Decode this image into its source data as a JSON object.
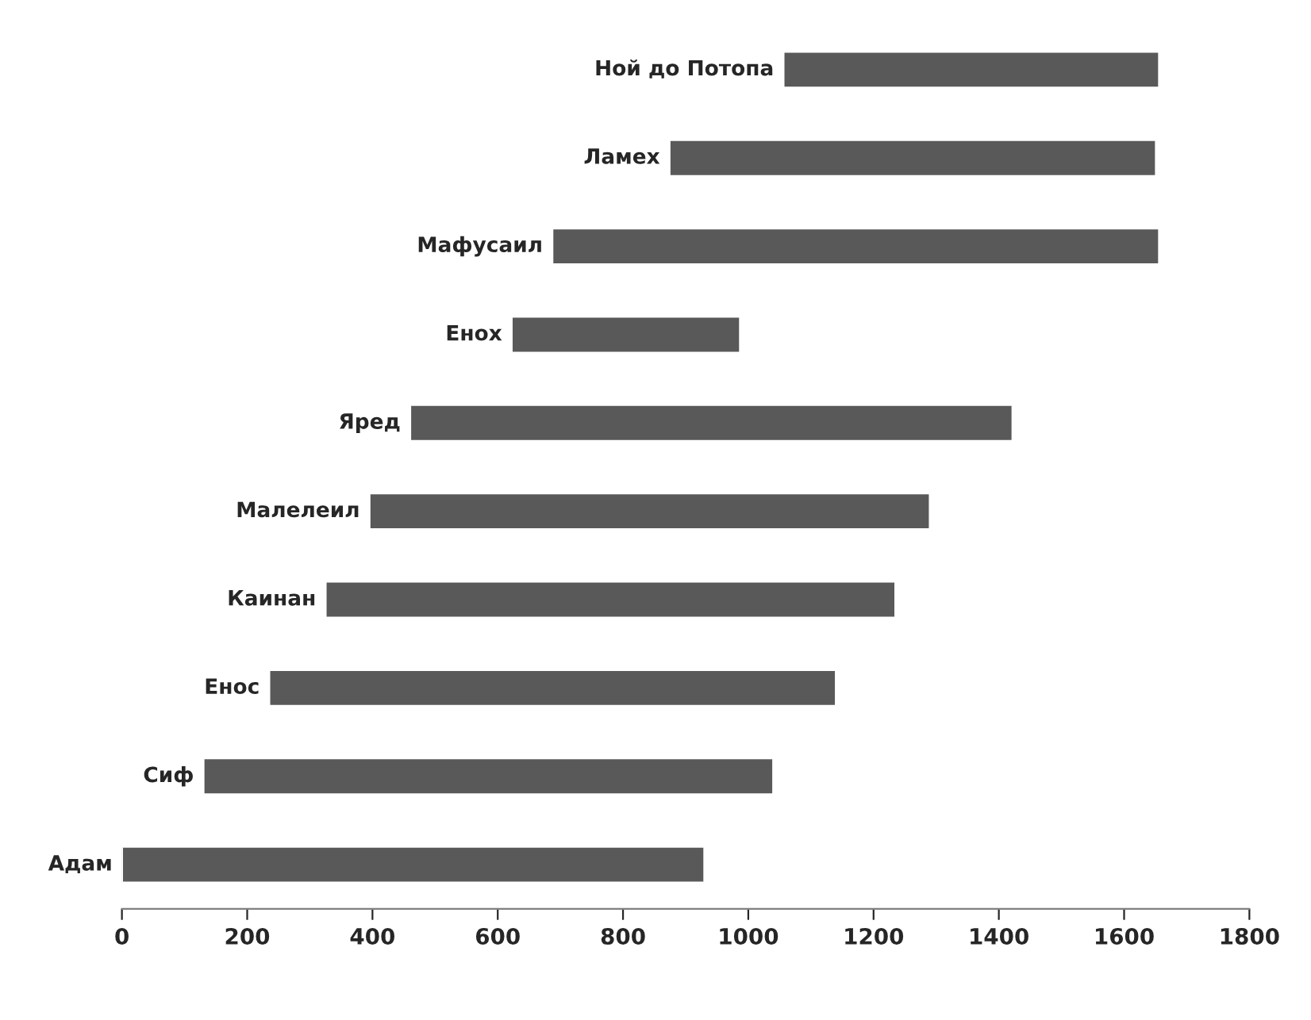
{
  "chart_data": {
    "type": "bar",
    "orientation": "horizontal",
    "categories": [
      "Ной до Потопа",
      "Ламех",
      "Мафусаил",
      "Енох",
      "Яред",
      "Малелеил",
      "Каинан",
      "Енос",
      "Сиф",
      "Адам"
    ],
    "base": [
      1056,
      874,
      687,
      622,
      460,
      395,
      325,
      235,
      130,
      0
    ],
    "values": [
      600,
      777,
      969,
      365,
      962,
      895,
      910,
      905,
      910,
      930
    ],
    "color": "#595959",
    "xlim": [
      0,
      1800
    ],
    "xticks": [
      0,
      200,
      400,
      600,
      800,
      1000,
      1200,
      1400,
      1600,
      1800
    ],
    "grid": false,
    "legend": false
  }
}
